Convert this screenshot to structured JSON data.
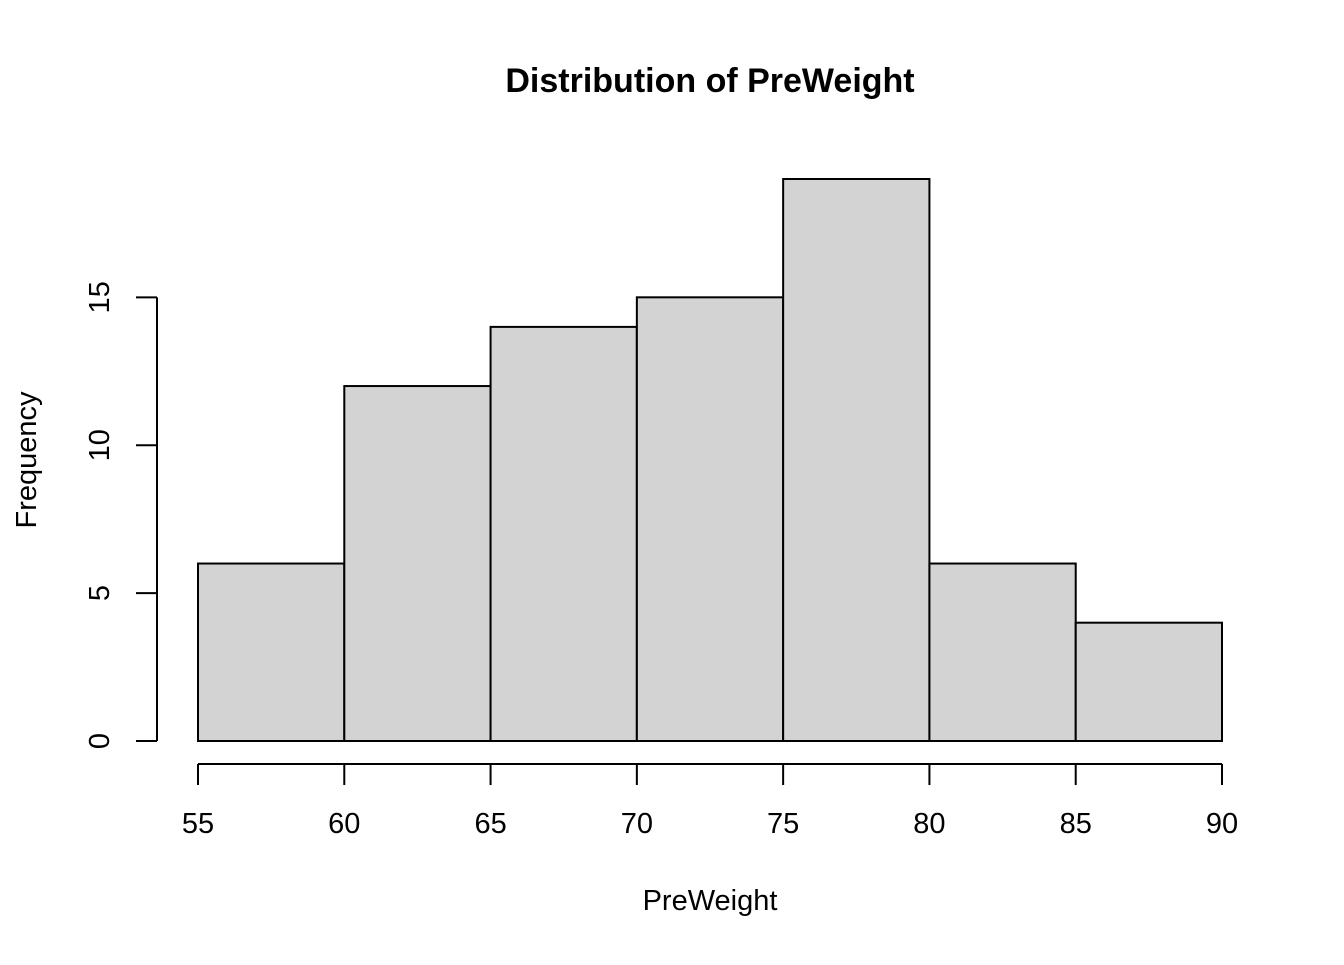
{
  "chart_data": {
    "type": "bar",
    "title": "Distribution of PreWeight",
    "xlabel": "PreWeight",
    "ylabel": "Frequency",
    "bin_edges": [
      55,
      60,
      65,
      70,
      75,
      80,
      85,
      90
    ],
    "values": [
      6,
      12,
      14,
      15,
      19,
      6,
      4
    ],
    "xlim": [
      55,
      90
    ],
    "ylim": [
      0,
      19
    ],
    "x_ticks": [
      55,
      60,
      65,
      70,
      75,
      80,
      85,
      90
    ],
    "y_ticks": [
      0,
      5,
      10,
      15
    ],
    "bar_fill": "#d3d3d3",
    "bar_stroke": "#000000",
    "grid": false,
    "legend": "none"
  }
}
